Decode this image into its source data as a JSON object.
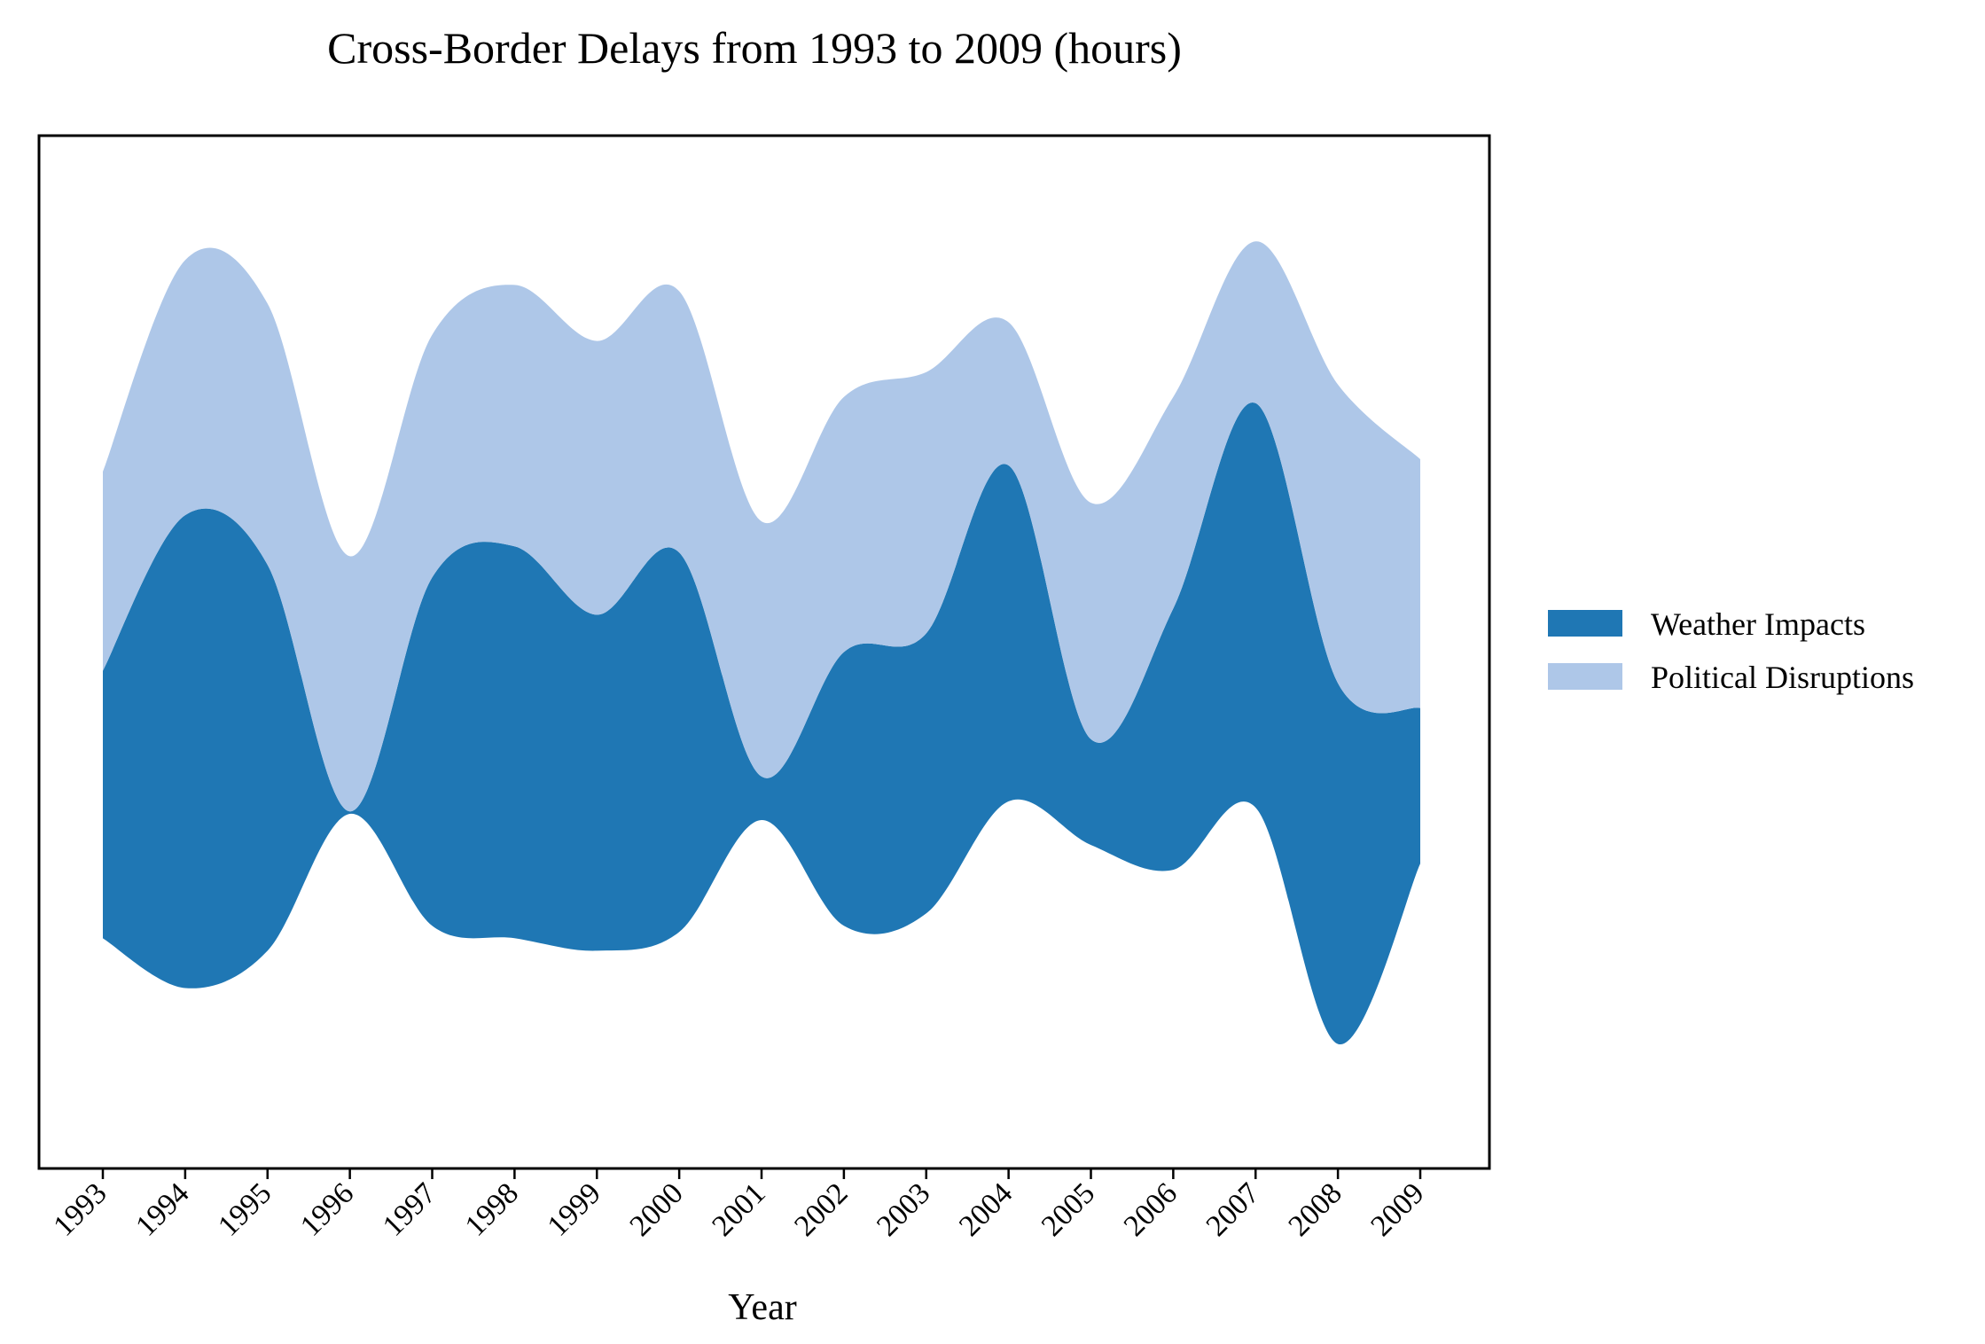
{
  "chart_data": {
    "type": "area",
    "subtype": "streamgraph",
    "title": "Cross-Border Delays from 1993 to 2009 (hours)",
    "xlabel": "Year",
    "ylabel": "",
    "x": [
      "1993",
      "1994",
      "1995",
      "1996",
      "1997",
      "1998",
      "1999",
      "2000",
      "2001",
      "2002",
      "2003",
      "2004",
      "2005",
      "2006",
      "2007",
      "2008",
      "2009"
    ],
    "y_axis_visible": false,
    "grid": false,
    "legend_position": "right",
    "series": [
      {
        "name": "Weather Impacts",
        "color": "#1f77b4",
        "values": [
          21.5,
          38.0,
          31.0,
          0.2,
          28.0,
          31.5,
          27.0,
          30.5,
          3.5,
          22.0,
          22.5,
          27.0,
          8.5,
          21.0,
          32.5,
          29.0,
          12.5
        ]
      },
      {
        "name": "Political Disruptions",
        "color": "#aec7e8",
        "values": [
          16.0,
          20.5,
          21.0,
          20.5,
          19.5,
          21.0,
          22.0,
          21.0,
          20.5,
          20.5,
          21.0,
          11.5,
          19.0,
          17.0,
          13.0,
          24.0,
          20.0
        ]
      }
    ],
    "baseline_offsets": [
      -21.5,
      -25.5,
      -22.5,
      -11.5,
      -20.5,
      -21.5,
      -22.5,
      -21.0,
      -12.0,
      -20.5,
      -19.5,
      -10.5,
      -14.0,
      -16.0,
      -11.0,
      -30.0,
      -15.5
    ],
    "ylim": [
      -40,
      43
    ]
  }
}
